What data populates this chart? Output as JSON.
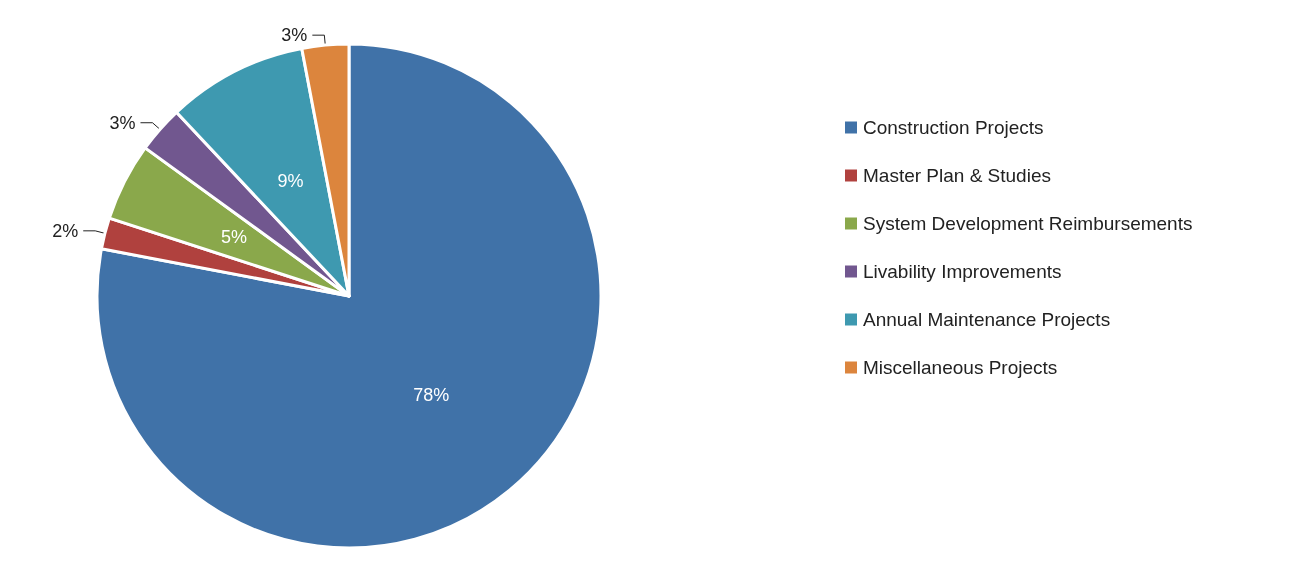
{
  "chart_data": {
    "type": "pie",
    "categories": [
      "Construction Projects",
      "Master Plan & Studies",
      "System Development Reimbursements",
      "Livability Improvements",
      "Annual Maintenance Projects",
      "Miscellaneous Projects"
    ],
    "values": [
      78,
      2,
      5,
      3,
      9,
      3
    ],
    "colors": [
      "#4072a8",
      "#b0413e",
      "#8aa84b",
      "#71578f",
      "#3e99b0",
      "#dc853d"
    ],
    "value_labels": [
      "78%",
      "2%",
      "5%",
      "3%",
      "9%",
      "3%"
    ],
    "legend": "right"
  }
}
